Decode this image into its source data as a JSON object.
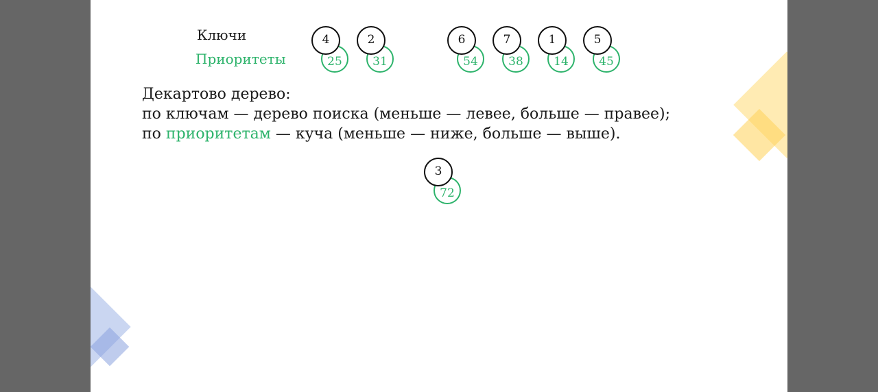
{
  "legend": {
    "keys_label": "Ключи",
    "priorities_label": "Приоритеты"
  },
  "nodes": [
    {
      "key": "4",
      "priority": "25"
    },
    {
      "key": "2",
      "priority": "31"
    },
    {
      "key": "6",
      "priority": "54"
    },
    {
      "key": "7",
      "priority": "38"
    },
    {
      "key": "1",
      "priority": "14"
    },
    {
      "key": "5",
      "priority": "45"
    }
  ],
  "text": {
    "line1": "Декартово дерево:",
    "line2": "по ключам — дерево поиска (меньше — левее, больше — правее);",
    "line3_prefix": "по ",
    "line3_highlight": "приоритетам",
    "line3_suffix": " — куча (меньше — ниже, больше — выше)."
  },
  "new_node": {
    "key": "3",
    "priority": "72"
  },
  "colors": {
    "accent_green": "#2db36b",
    "deco_yellow": "#ffd257",
    "deco_blue": "#8aa3df",
    "background": "#666666"
  }
}
